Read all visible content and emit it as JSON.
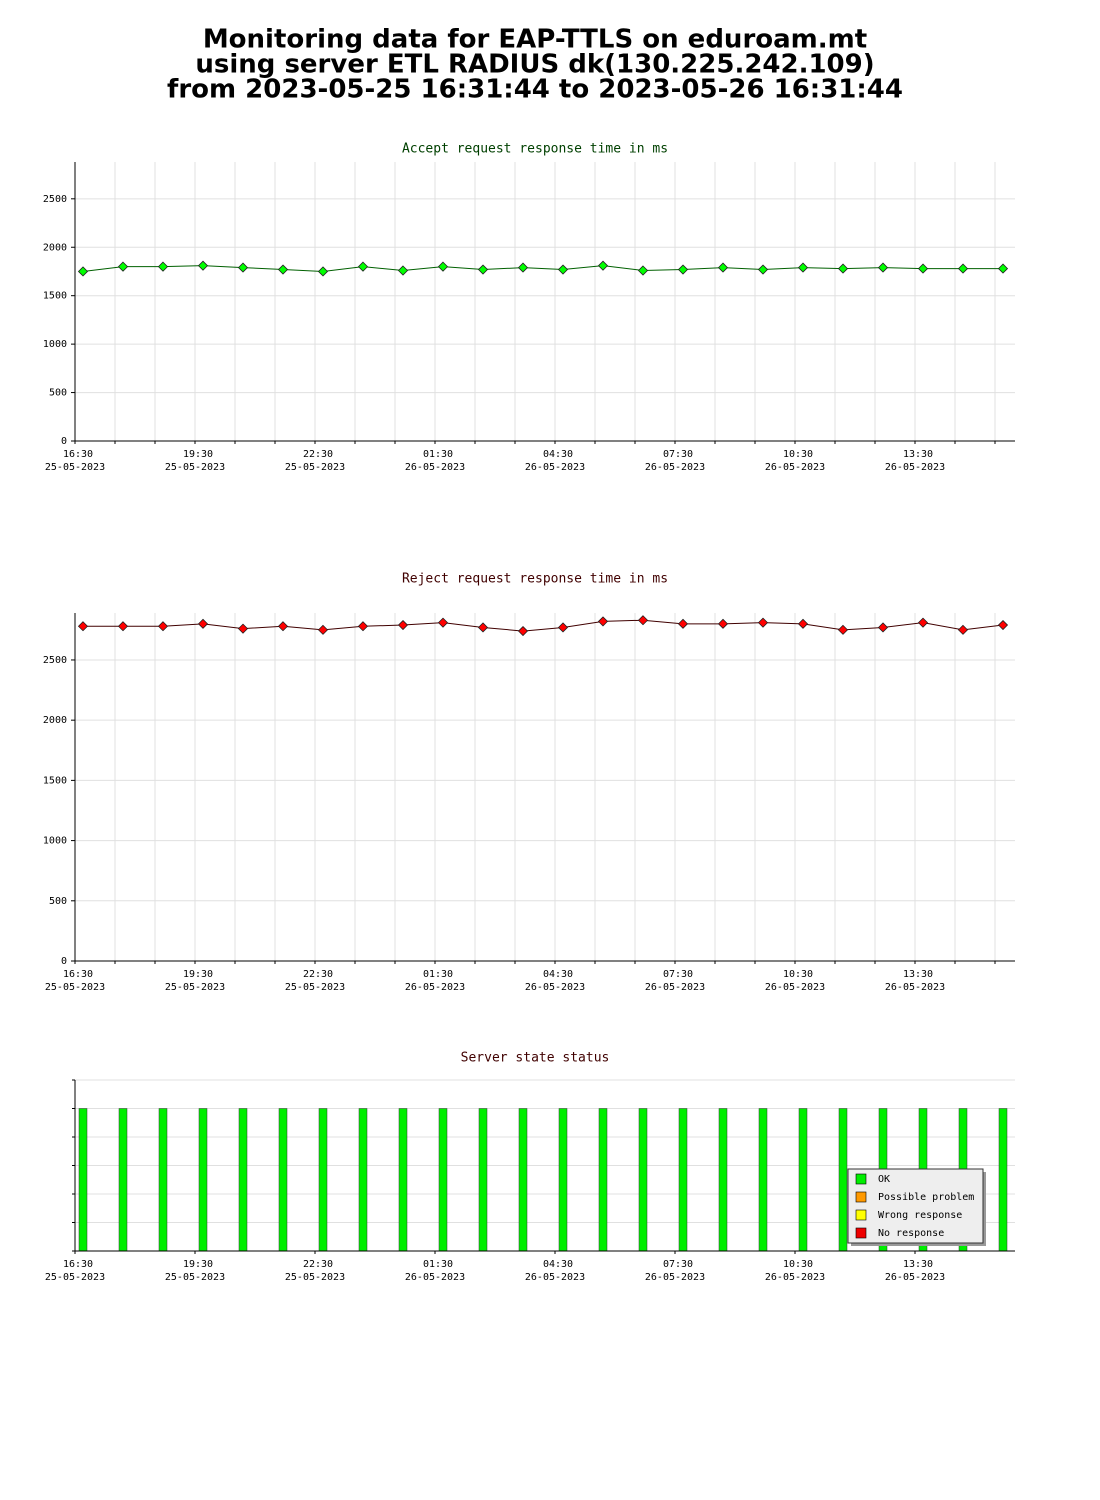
{
  "header": {
    "title": [
      "Monitoring data for EAP-TTLS on eduroam.mt",
      "using server ETL RADIUS dk(130.225.242.109)",
      "from 2023-05-25 16:31:44 to 2023-05-26 16:31:44"
    ]
  },
  "chart_data": [
    {
      "type": "line",
      "title": "Accept request response time in ms",
      "title_color": "#004000",
      "x": [
        "2023-05-25 16:42",
        "2023-05-25 17:42",
        "2023-05-25 18:42",
        "2023-05-25 19:42",
        "2023-05-25 20:42",
        "2023-05-25 21:42",
        "2023-05-25 22:42",
        "2023-05-25 23:42",
        "2023-05-26 00:42",
        "2023-05-26 01:42",
        "2023-05-26 02:42",
        "2023-05-26 03:42",
        "2023-05-26 04:42",
        "2023-05-26 05:42",
        "2023-05-26 06:42",
        "2023-05-26 07:42",
        "2023-05-26 08:42",
        "2023-05-26 09:42",
        "2023-05-26 10:42",
        "2023-05-26 11:42",
        "2023-05-26 12:42",
        "2023-05-26 13:42",
        "2023-05-26 14:42",
        "2023-05-26 15:42"
      ],
      "series": [
        {
          "values": [
            1750,
            1800,
            1800,
            1810,
            1790,
            1770,
            1750,
            1800,
            1760,
            1800,
            1770,
            1790,
            1770,
            1810,
            1760,
            1770,
            1790,
            1770,
            1790,
            1780,
            1790,
            1780,
            1780,
            1780
          ],
          "color": "#00ff00",
          "line_color": "#006000"
        }
      ],
      "xlim": [
        "2023-05-25 16:30",
        "2023-05-26 16:00"
      ],
      "xticks": [
        {
          "value": "2023-05-25 16:30",
          "label": [
            "16:30",
            "25-05-2023"
          ]
        },
        {
          "value": "2023-05-25 17:30",
          "label": null
        },
        {
          "value": "2023-05-25 18:30",
          "label": null
        },
        {
          "value": "2023-05-25 19:30",
          "label": [
            "19:30",
            "25-05-2023"
          ]
        },
        {
          "value": "2023-05-25 20:30",
          "label": null
        },
        {
          "value": "2023-05-25 21:30",
          "label": null
        },
        {
          "value": "2023-05-25 22:30",
          "label": [
            "22:30",
            "25-05-2023"
          ]
        },
        {
          "value": "2023-05-25 23:30",
          "label": null
        },
        {
          "value": "2023-05-26 00:30",
          "label": null
        },
        {
          "value": "2023-05-26 01:30",
          "label": [
            "01:30",
            "26-05-2023"
          ]
        },
        {
          "value": "2023-05-26 02:30",
          "label": null
        },
        {
          "value": "2023-05-26 03:30",
          "label": null
        },
        {
          "value": "2023-05-26 04:30",
          "label": [
            "04:30",
            "26-05-2023"
          ]
        },
        {
          "value": "2023-05-26 05:30",
          "label": null
        },
        {
          "value": "2023-05-26 06:30",
          "label": null
        },
        {
          "value": "2023-05-26 07:30",
          "label": [
            "07:30",
            "26-05-2023"
          ]
        },
        {
          "value": "2023-05-26 08:30",
          "label": null
        },
        {
          "value": "2023-05-26 09:30",
          "label": null
        },
        {
          "value": "2023-05-26 10:30",
          "label": [
            "10:30",
            "26-05-2023"
          ]
        },
        {
          "value": "2023-05-26 11:30",
          "label": null
        },
        {
          "value": "2023-05-26 12:30",
          "label": null
        },
        {
          "value": "2023-05-26 13:30",
          "label": [
            "13:30",
            "26-05-2023"
          ]
        },
        {
          "value": "2023-05-26 14:30",
          "label": null
        },
        {
          "value": "2023-05-26 15:30",
          "label": null
        }
      ],
      "ylim": [
        0,
        2880
      ],
      "yticks": [
        0,
        500,
        1000,
        1500,
        2000,
        2500
      ],
      "grid": true
    },
    {
      "type": "line",
      "title": "Reject request response time in ms",
      "title_color": "#400000",
      "x": [
        "2023-05-25 16:42",
        "2023-05-25 17:42",
        "2023-05-25 18:42",
        "2023-05-25 19:42",
        "2023-05-25 20:42",
        "2023-05-25 21:42",
        "2023-05-25 22:42",
        "2023-05-25 23:42",
        "2023-05-26 00:42",
        "2023-05-26 01:42",
        "2023-05-26 02:42",
        "2023-05-26 03:42",
        "2023-05-26 04:42",
        "2023-05-26 05:42",
        "2023-05-26 06:42",
        "2023-05-26 07:42",
        "2023-05-26 08:42",
        "2023-05-26 09:42",
        "2023-05-26 10:42",
        "2023-05-26 11:42",
        "2023-05-26 12:42",
        "2023-05-26 13:42",
        "2023-05-26 14:42",
        "2023-05-26 15:42"
      ],
      "series": [
        {
          "values": [
            2780,
            2780,
            2780,
            2800,
            2760,
            2780,
            2750,
            2780,
            2790,
            2810,
            2770,
            2740,
            2770,
            2820,
            2830,
            2800,
            2800,
            2810,
            2800,
            2750,
            2770,
            2810,
            2750,
            2790
          ],
          "color": "#ff0000",
          "line_color": "#400000"
        }
      ],
      "xlim": [
        "2023-05-25 16:30",
        "2023-05-26 16:00"
      ],
      "xticks": [
        {
          "value": "2023-05-25 16:30",
          "label": [
            "16:30",
            "25-05-2023"
          ]
        },
        {
          "value": "2023-05-25 17:30",
          "label": null
        },
        {
          "value": "2023-05-25 18:30",
          "label": null
        },
        {
          "value": "2023-05-25 19:30",
          "label": [
            "19:30",
            "25-05-2023"
          ]
        },
        {
          "value": "2023-05-25 20:30",
          "label": null
        },
        {
          "value": "2023-05-25 21:30",
          "label": null
        },
        {
          "value": "2023-05-25 22:30",
          "label": [
            "22:30",
            "25-05-2023"
          ]
        },
        {
          "value": "2023-05-25 23:30",
          "label": null
        },
        {
          "value": "2023-05-26 00:30",
          "label": null
        },
        {
          "value": "2023-05-26 01:30",
          "label": [
            "01:30",
            "26-05-2023"
          ]
        },
        {
          "value": "2023-05-26 02:30",
          "label": null
        },
        {
          "value": "2023-05-26 03:30",
          "label": null
        },
        {
          "value": "2023-05-26 04:30",
          "label": [
            "04:30",
            "26-05-2023"
          ]
        },
        {
          "value": "2023-05-26 05:30",
          "label": null
        },
        {
          "value": "2023-05-26 06:30",
          "label": null
        },
        {
          "value": "2023-05-26 07:30",
          "label": [
            "07:30",
            "26-05-2023"
          ]
        },
        {
          "value": "2023-05-26 08:30",
          "label": null
        },
        {
          "value": "2023-05-26 09:30",
          "label": null
        },
        {
          "value": "2023-05-26 10:30",
          "label": [
            "10:30",
            "26-05-2023"
          ]
        },
        {
          "value": "2023-05-26 11:30",
          "label": null
        },
        {
          "value": "2023-05-26 12:30",
          "label": null
        },
        {
          "value": "2023-05-26 13:30",
          "label": [
            "13:30",
            "26-05-2023"
          ]
        },
        {
          "value": "2023-05-26 14:30",
          "label": null
        },
        {
          "value": "2023-05-26 15:30",
          "label": null
        }
      ],
      "ylim": [
        0,
        2890
      ],
      "yticks": [
        0,
        500,
        1000,
        1500,
        2000,
        2500
      ],
      "grid": true
    },
    {
      "type": "status",
      "title": "Server state status",
      "title_color": "#400000",
      "x": [
        "2023-05-25 16:42",
        "2023-05-25 17:42",
        "2023-05-25 18:42",
        "2023-05-25 19:42",
        "2023-05-25 20:42",
        "2023-05-25 21:42",
        "2023-05-25 22:42",
        "2023-05-25 23:42",
        "2023-05-26 00:42",
        "2023-05-26 01:42",
        "2023-05-26 02:42",
        "2023-05-26 03:42",
        "2023-05-26 04:42",
        "2023-05-26 05:42",
        "2023-05-26 06:42",
        "2023-05-26 07:42",
        "2023-05-26 08:42",
        "2023-05-26 09:42",
        "2023-05-26 10:42",
        "2023-05-26 11:42",
        "2023-05-26 12:42",
        "2023-05-26 13:42",
        "2023-05-26 14:42",
        "2023-05-26 15:42"
      ],
      "values": [
        "OK",
        "OK",
        "OK",
        "OK",
        "OK",
        "OK",
        "OK",
        "OK",
        "OK",
        "OK",
        "OK",
        "OK",
        "OK",
        "OK",
        "OK",
        "OK",
        "OK",
        "OK",
        "OK",
        "OK",
        "OK",
        "OK",
        "OK",
        "OK"
      ],
      "series": [
        {
          "name": "OK",
          "color": "#00ee00"
        },
        {
          "name": "Possible problem",
          "color": "#ff9900"
        },
        {
          "name": "Wrong response",
          "color": "#ffff00"
        },
        {
          "name": "No response",
          "color": "#ee0000"
        }
      ],
      "legend": "lower right",
      "xlim": [
        "2023-05-25 16:30",
        "2023-05-26 16:00"
      ],
      "xticks": [
        {
          "value": "2023-05-25 16:30",
          "label": [
            "16:30",
            "25-05-2023"
          ]
        },
        {
          "value": "2023-05-25 19:30",
          "label": [
            "19:30",
            "25-05-2023"
          ]
        },
        {
          "value": "2023-05-25 22:30",
          "label": [
            "22:30",
            "25-05-2023"
          ]
        },
        {
          "value": "2023-05-26 01:30",
          "label": [
            "01:30",
            "26-05-2023"
          ]
        },
        {
          "value": "2023-05-26 04:30",
          "label": [
            "04:30",
            "26-05-2023"
          ]
        },
        {
          "value": "2023-05-26 07:30",
          "label": [
            "07:30",
            "26-05-2023"
          ]
        },
        {
          "value": "2023-05-26 10:30",
          "label": [
            "10:30",
            "26-05-2023"
          ]
        },
        {
          "value": "2023-05-26 13:30",
          "label": [
            "13:30",
            "26-05-2023"
          ]
        }
      ]
    }
  ]
}
